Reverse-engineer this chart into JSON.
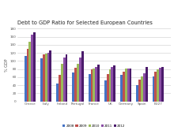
{
  "title": "Debt to GDP Ratio for Selected European Countries",
  "ylabel": "% GDP",
  "categories": [
    "Greece",
    "Italy",
    "Ireland",
    "Portugal",
    "France",
    "UK",
    "Germany",
    "Spain",
    "EU27"
  ],
  "series": [
    {
      "label": "2008",
      "color": "#4472C4",
      "values": [
        112,
        106,
        44,
        72,
        68,
        52,
        66,
        40,
        62
      ]
    },
    {
      "label": "2009",
      "color": "#C0504D",
      "values": [
        129,
        116,
        65,
        83,
        79,
        68,
        73,
        54,
        74
      ]
    },
    {
      "label": "2010",
      "color": "#9BBB59",
      "values": [
        148,
        119,
        93,
        93,
        82,
        80,
        82,
        61,
        80
      ]
    },
    {
      "label": "2011",
      "color": "#8B4EA6",
      "values": [
        165,
        120,
        108,
        108,
        86,
        85,
        81,
        69,
        83
      ]
    },
    {
      "label": "2012",
      "color": "#4B1B6B",
      "values": [
        170,
        127,
        117,
        124,
        90,
        89,
        81,
        85,
        86
      ]
    }
  ],
  "ylim": [
    0,
    180
  ],
  "yticks": [
    0,
    20,
    40,
    60,
    80,
    100,
    120,
    140,
    160,
    180
  ],
  "background_color": "#FFFFFF",
  "plot_bg_color": "#FFFFFF",
  "grid_color": "#CCCCCC",
  "title_fontsize": 4.8,
  "label_fontsize": 3.5,
  "tick_fontsize": 3.0,
  "legend_fontsize": 3.0,
  "bar_width": 0.14
}
